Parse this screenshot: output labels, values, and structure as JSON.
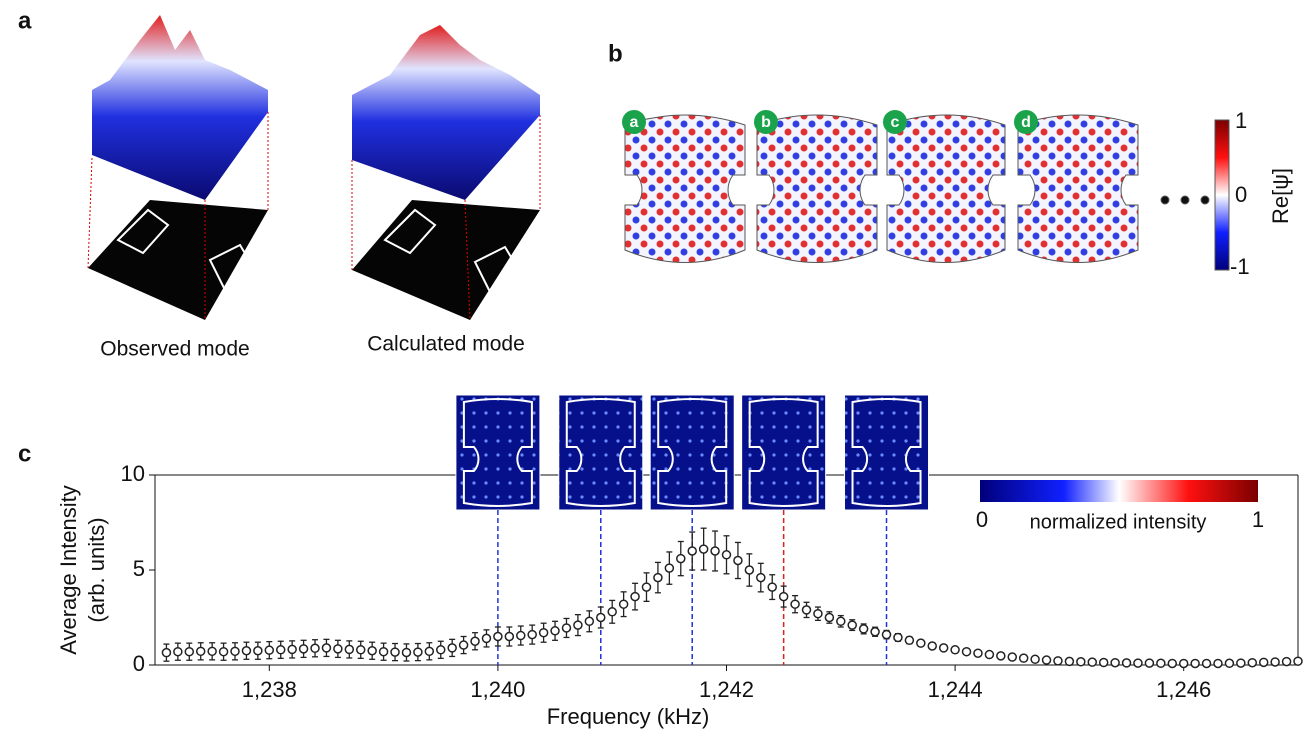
{
  "panel_labels": [
    "a",
    "b",
    "c"
  ],
  "panel_a": {
    "captions": [
      "Observed mode",
      "Calculated mode"
    ]
  },
  "panel_b": {
    "badges": [
      "a",
      "b",
      "c",
      "d"
    ],
    "colorbar_label": "Re[ψ]",
    "colorbar_ticks": [
      1,
      0,
      -1
    ]
  },
  "chart_data": {
    "type": "errorbar-scatter",
    "xlabel": "Frequency (kHz)",
    "ylabel": [
      "Average Intensity",
      "(arb. units)"
    ],
    "x": [
      1237.1,
      1237.2,
      1237.3,
      1237.4,
      1237.5,
      1237.6,
      1237.7,
      1237.8,
      1237.9,
      1238.0,
      1238.1,
      1238.2,
      1238.3,
      1238.4,
      1238.5,
      1238.6,
      1238.7,
      1238.8,
      1238.9,
      1239.0,
      1239.1,
      1239.2,
      1239.3,
      1239.4,
      1239.5,
      1239.6,
      1239.7,
      1239.8,
      1239.9,
      1240.0,
      1240.1,
      1240.2,
      1240.3,
      1240.4,
      1240.5,
      1240.6,
      1240.7,
      1240.8,
      1240.9,
      1241.0,
      1241.1,
      1241.2,
      1241.3,
      1241.4,
      1241.5,
      1241.6,
      1241.7,
      1241.8,
      1241.9,
      1242.0,
      1242.1,
      1242.2,
      1242.3,
      1242.4,
      1242.5,
      1242.6,
      1242.7,
      1242.8,
      1242.9,
      1243.0,
      1243.1,
      1243.2,
      1243.3,
      1243.4,
      1243.5,
      1243.6,
      1243.7,
      1243.8,
      1243.9,
      1244.0,
      1244.1,
      1244.2,
      1244.3,
      1244.4,
      1244.5,
      1244.6,
      1244.7,
      1244.8,
      1244.9,
      1245.0,
      1245.1,
      1245.2,
      1245.3,
      1245.4,
      1245.5,
      1245.6,
      1245.7,
      1245.8,
      1245.9,
      1246.0,
      1246.1,
      1246.2,
      1246.3,
      1246.4,
      1246.5,
      1246.6,
      1246.7,
      1246.8,
      1246.9,
      1247.0
    ],
    "values": [
      0.65,
      0.7,
      0.7,
      0.72,
      0.72,
      0.7,
      0.72,
      0.75,
      0.75,
      0.78,
      0.8,
      0.82,
      0.85,
      0.88,
      0.9,
      0.85,
      0.82,
      0.8,
      0.75,
      0.7,
      0.68,
      0.66,
      0.68,
      0.72,
      0.8,
      0.9,
      1.05,
      1.25,
      1.4,
      1.5,
      1.5,
      1.55,
      1.6,
      1.7,
      1.8,
      1.95,
      2.1,
      2.3,
      2.5,
      2.8,
      3.2,
      3.6,
      4.1,
      4.6,
      5.1,
      5.6,
      6.0,
      6.1,
      6.0,
      5.8,
      5.5,
      5.0,
      4.6,
      4.1,
      3.6,
      3.2,
      2.9,
      2.7,
      2.5,
      2.3,
      2.1,
      1.9,
      1.75,
      1.6,
      1.45,
      1.3,
      1.15,
      1.0,
      0.9,
      0.8,
      0.7,
      0.62,
      0.55,
      0.48,
      0.42,
      0.36,
      0.3,
      0.26,
      0.22,
      0.19,
      0.17,
      0.15,
      0.13,
      0.12,
      0.11,
      0.1,
      0.1,
      0.09,
      0.08,
      0.08,
      0.08,
      0.08,
      0.08,
      0.09,
      0.1,
      0.12,
      0.14,
      0.16,
      0.18,
      0.2
    ],
    "errors": [
      0.45,
      0.45,
      0.45,
      0.45,
      0.45,
      0.45,
      0.45,
      0.45,
      0.45,
      0.45,
      0.45,
      0.45,
      0.45,
      0.45,
      0.45,
      0.45,
      0.45,
      0.45,
      0.45,
      0.45,
      0.45,
      0.45,
      0.45,
      0.45,
      0.45,
      0.45,
      0.45,
      0.45,
      0.45,
      0.5,
      0.5,
      0.5,
      0.5,
      0.5,
      0.5,
      0.5,
      0.55,
      0.55,
      0.55,
      0.6,
      0.65,
      0.7,
      0.75,
      0.8,
      0.85,
      0.9,
      1.0,
      1.1,
      1.05,
      1.0,
      0.95,
      0.85,
      0.75,
      0.65,
      0.55,
      0.45,
      0.4,
      0.35,
      0.3,
      0.3,
      0.28,
      0.26,
      0.24,
      0.22,
      0.2,
      0.18,
      0.16,
      0.14,
      0.12,
      0.1,
      0.1,
      0.09,
      0.08,
      0.08,
      0.07,
      0.06,
      0.06,
      0.05,
      0.05,
      0.05,
      0.05,
      0.05,
      0.05,
      0.05,
      0.05,
      0.05,
      0.05,
      0.05,
      0.05,
      0.05,
      0.05,
      0.05,
      0.05,
      0.05,
      0.05,
      0.05,
      0.05,
      0.05,
      0.05,
      0.05
    ],
    "color": "#222222",
    "xlim": [
      1237,
      1247
    ],
    "ylim": [
      0,
      10
    ],
    "xticks": [
      {
        "value": 1238,
        "label": "1,238"
      },
      {
        "value": 1240,
        "label": "1,240"
      },
      {
        "value": 1242,
        "label": "1,242"
      },
      {
        "value": 1244,
        "label": "1,244"
      },
      {
        "value": 1246,
        "label": "1,246"
      }
    ],
    "yticks": [
      0,
      5,
      10
    ],
    "markers": [
      {
        "x": 1240.0,
        "color": "#2233dd"
      },
      {
        "x": 1240.9,
        "color": "#2233dd"
      },
      {
        "x": 1241.7,
        "color": "#2233dd"
      },
      {
        "x": 1242.5,
        "color": "#dd2222"
      },
      {
        "x": 1243.4,
        "color": "#2233dd"
      }
    ],
    "colorbar": {
      "label": "normalized intensity",
      "ticks": [
        0,
        1
      ]
    }
  }
}
